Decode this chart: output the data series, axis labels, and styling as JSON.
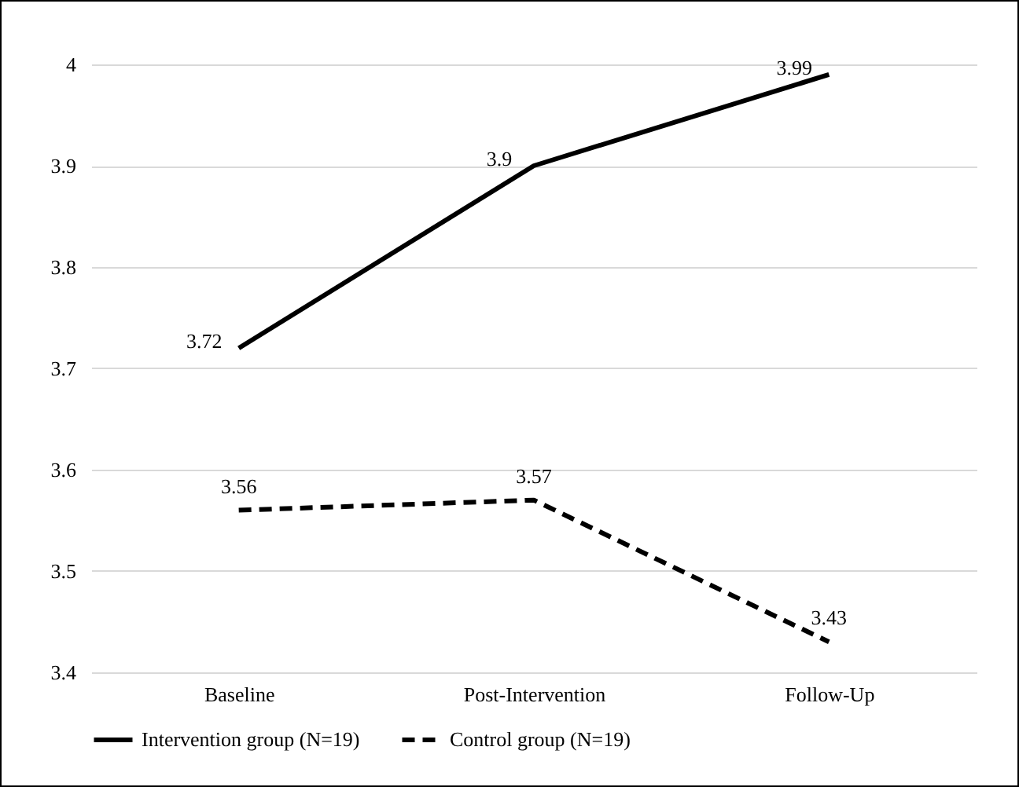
{
  "chart_data": {
    "type": "line",
    "categories": [
      "Baseline",
      "Post-Intervention",
      "Follow-Up"
    ],
    "series": [
      {
        "name": "Intervention group (N=19)",
        "color": "#000000",
        "line_style": "solid",
        "values": [
          3.72,
          3.9,
          3.99
        ]
      },
      {
        "name": "Control group (N=19)",
        "color": "#000000",
        "line_style": "dashed",
        "values": [
          3.56,
          3.57,
          3.43
        ]
      }
    ],
    "ylim": [
      3.4,
      4
    ],
    "yticks": [
      3.4,
      3.5,
      3.6,
      3.7,
      3.8,
      3.9,
      4
    ],
    "grid": "y",
    "legend": "bottom",
    "data_labels": true,
    "marker": "none"
  }
}
